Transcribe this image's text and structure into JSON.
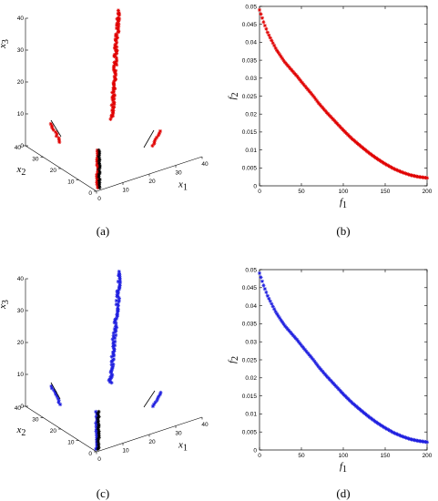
{
  "colors": {
    "top": "#e00000",
    "bottom": "#1f1fdf",
    "axis": "#000000",
    "box": "#000000"
  },
  "chart_data": [
    {
      "type": "scatter",
      "panel": "(a)",
      "projection": "3d",
      "xlabel": "x",
      "xlabel_sub": "1",
      "ylabel": "x",
      "ylabel_sub": "2",
      "zlabel": "x",
      "zlabel_sub": "3",
      "x_ticks": [
        "0",
        "10",
        "20",
        "30",
        "40"
      ],
      "y_ticks": [
        "0",
        "10",
        "20",
        "30",
        "40"
      ],
      "z_ticks": [
        "0",
        "10",
        "20",
        "30",
        "40"
      ],
      "color": "#e00000"
    },
    {
      "type": "scatter",
      "panel": "(b)",
      "xlabel": "f",
      "xlabel_sub": "1",
      "ylabel": "f",
      "ylabel_sub": "2",
      "xlim": [
        0,
        200
      ],
      "ylim": [
        0,
        0.05
      ],
      "x_ticks": [
        "0",
        "50",
        "100",
        "150",
        "200"
      ],
      "y_ticks": [
        "0",
        "0.005",
        "0.01",
        "0.015",
        "0.02",
        "0.025",
        "0.03",
        "0.035",
        "0.04",
        "0.045",
        "0.05"
      ],
      "series_x": [
        0,
        5,
        10,
        20,
        30,
        40,
        45,
        50,
        60,
        65,
        70,
        80,
        90,
        100,
        110,
        120,
        130,
        140,
        150,
        160,
        170,
        180,
        190,
        200
      ],
      "series_y": [
        0.049,
        0.0455,
        0.0425,
        0.038,
        0.0345,
        0.0318,
        0.0305,
        0.029,
        0.0262,
        0.0248,
        0.0232,
        0.0205,
        0.018,
        0.0155,
        0.0132,
        0.0112,
        0.0093,
        0.0076,
        0.0061,
        0.0048,
        0.0038,
        0.003,
        0.0025,
        0.0022
      ],
      "color": "#e00000"
    },
    {
      "type": "scatter",
      "panel": "(c)",
      "projection": "3d",
      "xlabel": "x",
      "xlabel_sub": "1",
      "ylabel": "x",
      "ylabel_sub": "2",
      "zlabel": "x",
      "zlabel_sub": "3",
      "x_ticks": [
        "0",
        "10",
        "20",
        "30",
        "40"
      ],
      "y_ticks": [
        "0",
        "10",
        "20",
        "30",
        "40"
      ],
      "z_ticks": [
        "0",
        "10",
        "20",
        "30",
        "40"
      ],
      "color": "#1f1fdf"
    },
    {
      "type": "scatter",
      "panel": "(d)",
      "xlabel": "f",
      "xlabel_sub": "1",
      "ylabel": "f",
      "ylabel_sub": "2",
      "xlim": [
        0,
        200
      ],
      "ylim": [
        0,
        0.05
      ],
      "x_ticks": [
        "0",
        "50",
        "100",
        "150",
        "200"
      ],
      "y_ticks": [
        "0",
        "0.005",
        "0.01",
        "0.015",
        "0.02",
        "0.025",
        "0.03",
        "0.035",
        "0.04",
        "0.045",
        "0.05"
      ],
      "series_x": [
        0,
        5,
        10,
        20,
        30,
        40,
        45,
        50,
        60,
        65,
        70,
        80,
        90,
        100,
        110,
        120,
        130,
        140,
        150,
        160,
        170,
        180,
        190,
        200
      ],
      "series_y": [
        0.049,
        0.0455,
        0.0425,
        0.038,
        0.0345,
        0.0318,
        0.0305,
        0.029,
        0.0262,
        0.0248,
        0.0232,
        0.0205,
        0.018,
        0.0155,
        0.0132,
        0.0112,
        0.0093,
        0.0076,
        0.0061,
        0.0048,
        0.0038,
        0.003,
        0.0025,
        0.0022
      ],
      "color": "#1f1fdf"
    }
  ]
}
